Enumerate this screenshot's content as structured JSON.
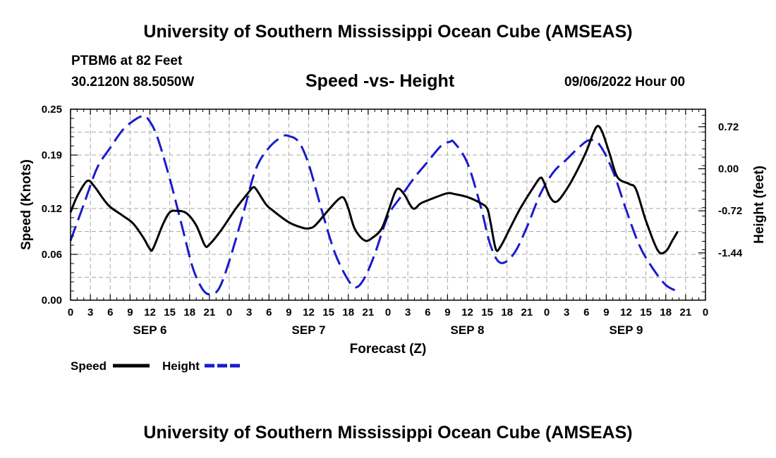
{
  "header": {
    "title": "University of Southern Mississippi Ocean Cube (AMSEAS)",
    "station": "PTBM6 at 82 Feet",
    "coords": "30.2120N  88.5050W",
    "run_time": "09/06/2022 Hour 00"
  },
  "footer": {
    "title": "University of Southern Mississippi Ocean Cube (AMSEAS)"
  },
  "colors": {
    "speed": "#000000",
    "height": "#1a1acc",
    "grid": "#a8a8a8"
  },
  "chart_data": {
    "type": "line",
    "title": "Speed -vs- Height",
    "xlabel": "Forecast (Z)",
    "ylabel_left": "Speed (Knots)",
    "ylabel_right": "Height (feet)",
    "x_range_hours": [
      0,
      96
    ],
    "ylim_left": [
      0,
      0.25
    ],
    "ylim_right": [
      -2.25,
      1.02
    ],
    "left_ticks": [
      "0.25",
      "0.19",
      "0.12",
      "0.06",
      "0.00"
    ],
    "left_tick_values": [
      0.25,
      0.19,
      0.12,
      0.06,
      0.0
    ],
    "right_ticks": [
      "0.72",
      "0.00",
      "-0.72",
      "-1.44"
    ],
    "right_tick_values": [
      0.72,
      0.0,
      -0.72,
      -1.44
    ],
    "x_tick_labels": [
      "0",
      "3",
      "6",
      "9",
      "12",
      "15",
      "18",
      "21",
      "0",
      "3",
      "6",
      "9",
      "12",
      "15",
      "18",
      "21",
      "0",
      "3",
      "6",
      "9",
      "12",
      "15",
      "18",
      "21",
      "0",
      "3",
      "6",
      "9",
      "12",
      "15",
      "18",
      "21",
      "0"
    ],
    "day_labels": [
      {
        "label": "SEP 6",
        "hour": 12
      },
      {
        "label": "SEP 7",
        "hour": 36
      },
      {
        "label": "SEP 8",
        "hour": 60
      },
      {
        "label": "SEP 9",
        "hour": 84
      }
    ],
    "legend": [
      "Speed",
      "Height"
    ],
    "series": [
      {
        "name": "Speed",
        "style": "solid",
        "axis": "left",
        "points": [
          [
            0,
            0.115
          ],
          [
            1,
            0.136
          ],
          [
            2.5,
            0.156
          ],
          [
            3.5,
            0.15
          ],
          [
            5,
            0.132
          ],
          [
            6,
            0.122
          ],
          [
            8,
            0.11
          ],
          [
            9.5,
            0.1
          ],
          [
            11,
            0.082
          ],
          [
            12,
            0.067
          ],
          [
            12.5,
            0.068
          ],
          [
            14,
            0.1
          ],
          [
            15,
            0.115
          ],
          [
            16,
            0.117
          ],
          [
            17.5,
            0.114
          ],
          [
            19,
            0.098
          ],
          [
            20.3,
            0.072
          ],
          [
            21,
            0.073
          ],
          [
            22.8,
            0.092
          ],
          [
            25,
            0.12
          ],
          [
            27,
            0.142
          ],
          [
            27.5,
            0.147
          ],
          [
            28,
            0.146
          ],
          [
            29.5,
            0.126
          ],
          [
            30.5,
            0.118
          ],
          [
            33,
            0.102
          ],
          [
            35,
            0.095
          ],
          [
            36,
            0.094
          ],
          [
            37,
            0.098
          ],
          [
            39,
            0.118
          ],
          [
            40.5,
            0.132
          ],
          [
            41.3,
            0.134
          ],
          [
            42,
            0.12
          ],
          [
            43,
            0.093
          ],
          [
            44.5,
            0.078
          ],
          [
            45.7,
            0.082
          ],
          [
            47,
            0.093
          ],
          [
            48,
            0.115
          ],
          [
            49,
            0.14
          ],
          [
            49.6,
            0.146
          ],
          [
            50.5,
            0.138
          ],
          [
            51.8,
            0.12
          ],
          [
            53,
            0.127
          ],
          [
            55,
            0.134
          ],
          [
            57,
            0.14
          ],
          [
            58,
            0.139
          ],
          [
            60,
            0.135
          ],
          [
            62,
            0.127
          ],
          [
            63,
            0.12
          ],
          [
            63.5,
            0.102
          ],
          [
            64.3,
            0.067
          ],
          [
            65,
            0.07
          ],
          [
            66.5,
            0.095
          ],
          [
            68,
            0.12
          ],
          [
            70,
            0.148
          ],
          [
            71,
            0.16
          ],
          [
            71.5,
            0.156
          ],
          [
            72.5,
            0.135
          ],
          [
            73.5,
            0.129
          ],
          [
            75,
            0.145
          ],
          [
            76.5,
            0.168
          ],
          [
            78,
            0.195
          ],
          [
            79,
            0.218
          ],
          [
            79.7,
            0.228
          ],
          [
            80.4,
            0.22
          ],
          [
            81.5,
            0.192
          ],
          [
            82.7,
            0.161
          ],
          [
            84.5,
            0.152
          ],
          [
            85.5,
            0.145
          ],
          [
            87,
            0.104
          ],
          [
            88.8,
            0.065
          ],
          [
            90,
            0.064
          ],
          [
            91,
            0.078
          ],
          [
            91.8,
            0.09
          ]
        ]
      },
      {
        "name": "Height",
        "style": "dashed",
        "axis": "right",
        "points": [
          [
            0,
            -1.23
          ],
          [
            2,
            -0.61
          ],
          [
            4,
            0.01
          ],
          [
            6,
            0.36
          ],
          [
            8,
            0.68
          ],
          [
            10,
            0.86
          ],
          [
            11,
            0.9
          ],
          [
            11.6,
            0.87
          ],
          [
            13,
            0.58
          ],
          [
            15,
            -0.17
          ],
          [
            17,
            -1.05
          ],
          [
            18.5,
            -1.7
          ],
          [
            20,
            -2.07
          ],
          [
            21.2,
            -2.15
          ],
          [
            22.5,
            -2.04
          ],
          [
            24,
            -1.58
          ],
          [
            26,
            -0.81
          ],
          [
            28,
            -0.01
          ],
          [
            30,
            0.36
          ],
          [
            32,
            0.55
          ],
          [
            33,
            0.56
          ],
          [
            34.5,
            0.46
          ],
          [
            36,
            0.08
          ],
          [
            38,
            -0.72
          ],
          [
            40,
            -1.45
          ],
          [
            42,
            -1.91
          ],
          [
            43.2,
            -2.03
          ],
          [
            44.5,
            -1.86
          ],
          [
            46,
            -1.46
          ],
          [
            48,
            -0.81
          ],
          [
            50,
            -0.47
          ],
          [
            52,
            -0.15
          ],
          [
            54,
            0.12
          ],
          [
            56,
            0.39
          ],
          [
            57.3,
            0.46
          ],
          [
            58,
            0.45
          ],
          [
            60,
            0.1
          ],
          [
            62,
            -0.64
          ],
          [
            63.5,
            -1.31
          ],
          [
            65,
            -1.61
          ],
          [
            67,
            -1.46
          ],
          [
            69,
            -1.0
          ],
          [
            71,
            -0.44
          ],
          [
            73,
            -0.06
          ],
          [
            75,
            0.16
          ],
          [
            77,
            0.38
          ],
          [
            78.5,
            0.49
          ],
          [
            80,
            0.41
          ],
          [
            82,
            -0.04
          ],
          [
            84,
            -0.7
          ],
          [
            86,
            -1.31
          ],
          [
            88,
            -1.7
          ],
          [
            90,
            -1.99
          ],
          [
            91.8,
            -2.1
          ]
        ]
      }
    ]
  }
}
